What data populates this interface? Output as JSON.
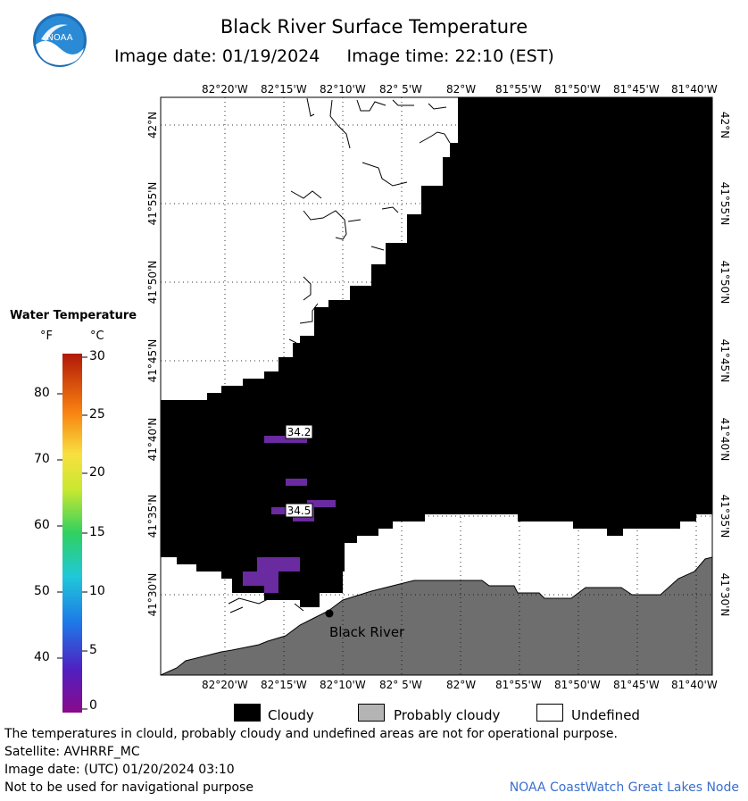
{
  "header": {
    "title": "Black River Surface Temperature",
    "image_date_label": "Image date: 01/19/2024",
    "image_time_label": "Image time: 22:10 (EST)",
    "logo_text": "NOAA"
  },
  "map": {
    "lon_ticks": [
      "82°20'W",
      "82°15'W",
      "82°10'W",
      "82° 5'W",
      "82°W",
      "81°55'W",
      "81°50'W",
      "81°45'W",
      "81°40'W"
    ],
    "lat_ticks": [
      "42°N",
      "41°55'N",
      "41°50'N",
      "41°45'N",
      "41°40'N",
      "41°35'N",
      "41°30'N"
    ],
    "temperature_labels": [
      {
        "value": "34.2"
      },
      {
        "value": "34.5"
      }
    ],
    "place_label": "Black River",
    "colors": {
      "cloudy": "#000000",
      "probably_cloudy": "#6e6e6e",
      "undefined": "#ffffff",
      "water_cold": "#6a2aa0"
    }
  },
  "colorbar": {
    "title": "Water Temperature",
    "unit_f": "°F",
    "unit_c": "°C",
    "f_labels": [
      "80",
      "70",
      "60",
      "50",
      "40"
    ],
    "c_labels": [
      "30",
      "25",
      "20",
      "15",
      "10",
      "5",
      "0"
    ]
  },
  "key": {
    "cloudy": "Cloudy",
    "probably_cloudy": "Probably cloudy",
    "undefined": "Undefined"
  },
  "footer": {
    "disclaimer": "The temperatures in clould, probably cloudy and undefined areas are not for operational purpose.",
    "satellite": "Satellite: AVHRRF_MC",
    "utc_date": "Image date: (UTC) 01/20/2024  03:10",
    "nav_warning": "Not to be used for navigational purpose",
    "credit": "NOAA CoastWatch Great Lakes Node"
  }
}
